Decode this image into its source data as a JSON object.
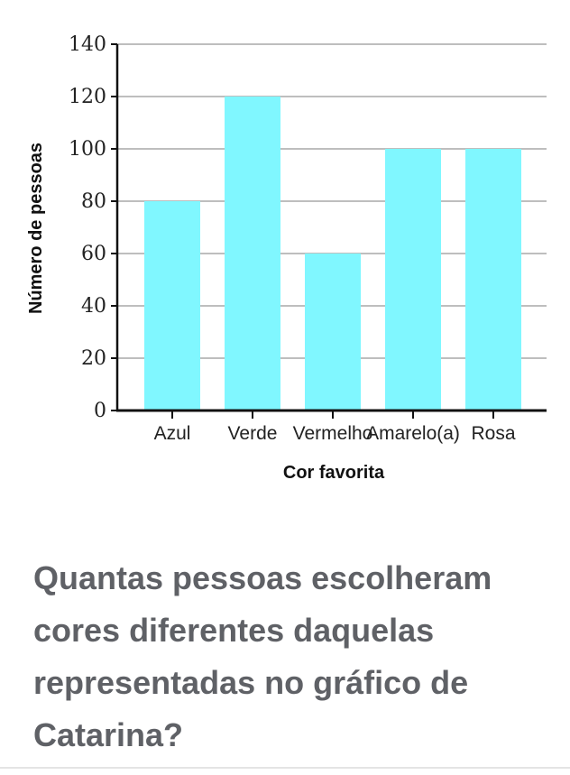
{
  "chart_data": {
    "type": "bar",
    "categories": [
      "Azul",
      "Verde",
      "Vermelho",
      "Amarelo(a)",
      "Rosa"
    ],
    "values": [
      80,
      120,
      60,
      100,
      100
    ],
    "xlabel": "Cor favorita",
    "ylabel": "Número de pessoas",
    "ylim": [
      0,
      140
    ],
    "yticks": [
      0,
      20,
      40,
      60,
      80,
      100,
      120,
      140
    ],
    "grid": true,
    "bar_color": "#80f7ff"
  },
  "question": {
    "text": "Quantas pessoas escolheram cores diferentes daquelas representadas no gráfico de Catarina?"
  }
}
